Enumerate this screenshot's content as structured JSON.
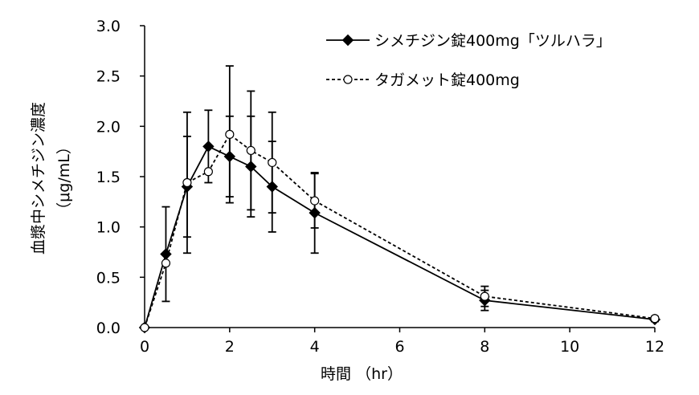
{
  "chart_data": {
    "type": "line",
    "xlabel": "時間 （hr）",
    "ylabel": "血漿中シメチジン濃度",
    "ylabel_units": "（μg/mL）",
    "xlim": [
      0,
      12
    ],
    "ylim": [
      0,
      3.0
    ],
    "xticks": [
      0,
      2,
      4,
      6,
      8,
      10,
      12
    ],
    "yticks": [
      0,
      0.5,
      1.0,
      1.5,
      2.0,
      2.5,
      3.0
    ],
    "xtick_labels": [
      "0",
      "2",
      "4",
      "6",
      "8",
      "10",
      "12"
    ],
    "ytick_labels": [
      "0.0",
      "0.5",
      "1.0",
      "1.5",
      "2.0",
      "2.5",
      "3.0"
    ],
    "grid": false,
    "legend_position": "top-right",
    "series": [
      {
        "name": "シメチジン錠400mg「ツルハラ」",
        "line": "solid",
        "marker": "filled-diamond",
        "color": "#000000",
        "x": [
          0,
          0.5,
          1,
          1.5,
          2,
          2.5,
          3,
          4,
          8,
          12
        ],
        "y": [
          0,
          0.73,
          1.4,
          1.8,
          1.7,
          1.6,
          1.4,
          1.14,
          0.27,
          0.08
        ],
        "error": [
          0,
          0.47,
          0.5,
          0.36,
          0.4,
          0.5,
          0.45,
          0.4,
          0.1,
          0.02
        ]
      },
      {
        "name": "タガメット錠400mg",
        "line": "dashed",
        "marker": "open-circle",
        "color": "#000000",
        "x": [
          0,
          0.5,
          1,
          1.5,
          2,
          2.5,
          3,
          4,
          8,
          12
        ],
        "y": [
          0,
          0.64,
          1.44,
          1.55,
          1.92,
          1.76,
          1.64,
          1.26,
          0.31,
          0.09
        ],
        "error": [
          0,
          0,
          0.7,
          0,
          0.68,
          0.59,
          0.5,
          0.27,
          0.1,
          0.02
        ]
      }
    ]
  }
}
